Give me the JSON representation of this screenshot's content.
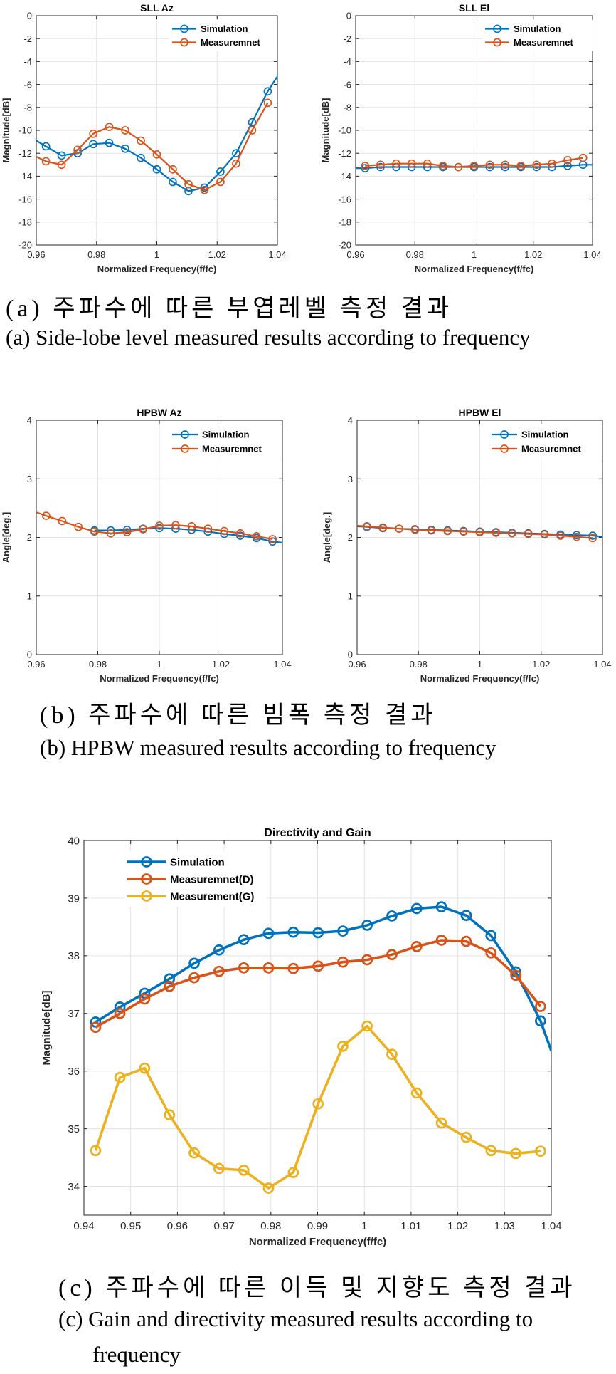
{
  "colors": {
    "simulation": "#0072BD",
    "measurement": "#D95319",
    "gain": "#EDB120"
  },
  "captions": {
    "a_ko": "(a) 주파수에 따른 부엽레벨 측정 결과",
    "a_en": "(a) Side-lobe level measured results according to frequency",
    "b_ko": "(b) 주파수에 따른 빔폭 측정 결과",
    "b_en": "(b) HPBW measured results according to frequency",
    "c_ko": "(c) 주파수에 따른 이득 및 지향도 측정 결과",
    "c_en1": "(c) Gain and directivity measured results according to",
    "c_en2": "frequency"
  },
  "chart_data": [
    {
      "id": "sll-az",
      "type": "line",
      "title": "SLL Az",
      "xlabel": "Normalized Frequency(f/fc)",
      "ylabel": "Magnitude[dB]",
      "xlim": [
        0.96,
        1.04
      ],
      "ylim": [
        -20,
        0
      ],
      "xticks": [
        0.96,
        0.98,
        1,
        1.02,
        1.04
      ],
      "xtick_labels": [
        "0.96",
        "0.98",
        "1",
        "1.02",
        "1.04"
      ],
      "yticks": [
        0,
        -2,
        -4,
        -6,
        -8,
        -10,
        -12,
        -14,
        -16,
        -18,
        -20
      ],
      "ytick_labels": [
        "0",
        "-2",
        "-4",
        "-6",
        "-8",
        "-10",
        "-12",
        "-14",
        "-16",
        "-18",
        "-20"
      ],
      "legend": [
        "Simulation",
        "Measuremnet"
      ],
      "series": [
        {
          "name": "Simulation",
          "color": "simulation",
          "x": [
            0.96,
            0.9632,
            0.9684,
            0.9737,
            0.9789,
            0.9842,
            0.9895,
            0.9947,
            1.0,
            1.0053,
            1.0105,
            1.0158,
            1.0211,
            1.0263,
            1.0316,
            1.0368,
            1.04
          ],
          "y": [
            -10.9,
            -11.4,
            -12.2,
            -12.0,
            -11.2,
            -11.1,
            -11.6,
            -12.4,
            -13.4,
            -14.5,
            -15.3,
            -15.0,
            -13.6,
            -12.0,
            -9.3,
            -6.6,
            -5.3
          ],
          "markers": [
            1,
            2,
            3,
            4,
            5,
            6,
            7,
            8,
            9,
            10,
            11,
            12,
            13,
            14,
            15
          ]
        },
        {
          "name": "Measuremnet",
          "color": "measurement",
          "x": [
            0.96,
            0.9632,
            0.9684,
            0.9737,
            0.9789,
            0.9842,
            0.9895,
            0.9947,
            1.0,
            1.0053,
            1.0105,
            1.0158,
            1.0211,
            1.0263,
            1.0316,
            1.0368
          ],
          "y": [
            -12.3,
            -12.7,
            -13.0,
            -11.7,
            -10.3,
            -9.7,
            -10.0,
            -10.9,
            -12.1,
            -13.4,
            -14.7,
            -15.2,
            -14.5,
            -12.9,
            -10.0,
            -7.6
          ],
          "markers": [
            1,
            2,
            3,
            4,
            5,
            6,
            7,
            8,
            9,
            10,
            11,
            12,
            13,
            14,
            15
          ]
        }
      ]
    },
    {
      "id": "sll-el",
      "type": "line",
      "title": "SLL El",
      "xlabel": "Normalized Frequency(f/fc)",
      "ylabel": "Magnitude[dB]",
      "xlim": [
        0.96,
        1.04
      ],
      "ylim": [
        -20,
        0
      ],
      "xticks": [
        0.96,
        0.98,
        1,
        1.02,
        1.04
      ],
      "xtick_labels": [
        "0.96",
        "0.98",
        "1",
        "1.02",
        "1.04"
      ],
      "yticks": [
        0,
        -2,
        -4,
        -6,
        -8,
        -10,
        -12,
        -14,
        -16,
        -18,
        -20
      ],
      "ytick_labels": [
        "0",
        "-2",
        "-4",
        "-6",
        "-8",
        "-10",
        "-12",
        "-14",
        "-16",
        "-18",
        "-20"
      ],
      "legend": [
        "Simulation",
        "Measuremnet"
      ],
      "series": [
        {
          "name": "Simulation",
          "color": "simulation",
          "x": [
            0.96,
            0.9632,
            0.9684,
            0.9737,
            0.9789,
            0.9842,
            0.9895,
            0.9947,
            1.0,
            1.0053,
            1.0105,
            1.0158,
            1.0211,
            1.0263,
            1.0316,
            1.0368,
            1.04
          ],
          "y": [
            -13.3,
            -13.3,
            -13.2,
            -13.2,
            -13.2,
            -13.2,
            -13.2,
            -13.2,
            -13.2,
            -13.2,
            -13.2,
            -13.2,
            -13.2,
            -13.2,
            -13.1,
            -13.0,
            -13.0
          ],
          "markers": [
            1,
            2,
            3,
            4,
            5,
            6,
            7,
            8,
            9,
            10,
            11,
            12,
            13,
            14,
            15
          ]
        },
        {
          "name": "Measuremnet",
          "color": "measurement",
          "x": [
            0.9632,
            0.9684,
            0.9737,
            0.9789,
            0.9842,
            0.9895,
            0.9947,
            1.0,
            1.0053,
            1.0105,
            1.0158,
            1.0211,
            1.0263,
            1.0316,
            1.0368
          ],
          "y": [
            -13.1,
            -13.0,
            -12.9,
            -12.9,
            -12.9,
            -13.1,
            -13.2,
            -13.1,
            -13.0,
            -13.0,
            -13.1,
            -13.0,
            -12.9,
            -12.6,
            -12.4
          ],
          "markers": [
            0,
            1,
            2,
            3,
            4,
            5,
            6,
            7,
            8,
            9,
            10,
            11,
            12,
            13,
            14
          ]
        }
      ]
    },
    {
      "id": "hpbw-az",
      "type": "line",
      "title": "HPBW Az",
      "xlabel": "Normalized Frequency(f/fc)",
      "ylabel": "Angle[deg.]",
      "xlim": [
        0.96,
        1.04
      ],
      "ylim": [
        0,
        4
      ],
      "xticks": [
        0.96,
        0.98,
        1,
        1.02,
        1.04
      ],
      "xtick_labels": [
        "0.96",
        "0.98",
        "1",
        "1.02",
        "1.04"
      ],
      "yticks": [
        0,
        1,
        2,
        3,
        4
      ],
      "ytick_labels": [
        "0",
        "1",
        "2",
        "3",
        "4"
      ],
      "legend": [
        "Simulation",
        "Measuremnet"
      ],
      "series": [
        {
          "name": "Simulation",
          "color": "simulation",
          "x": [
            0.9789,
            0.9842,
            0.9895,
            0.9947,
            1.0,
            1.0053,
            1.0105,
            1.0158,
            1.0211,
            1.0263,
            1.0316,
            1.0368,
            1.04
          ],
          "y": [
            2.12,
            2.12,
            2.13,
            2.15,
            2.16,
            2.15,
            2.13,
            2.1,
            2.06,
            2.03,
            1.99,
            1.93,
            1.91
          ],
          "markers": [
            0,
            1,
            2,
            3,
            4,
            5,
            6,
            7,
            8,
            9,
            10,
            11
          ]
        },
        {
          "name": "Measuremnet",
          "color": "measurement",
          "x": [
            0.96,
            0.9632,
            0.9684,
            0.9737,
            0.9789,
            0.9842,
            0.9895,
            0.9947,
            1.0,
            1.0053,
            1.0105,
            1.0158,
            1.0211,
            1.0263,
            1.0316,
            1.0368
          ],
          "y": [
            2.43,
            2.37,
            2.28,
            2.18,
            2.1,
            2.07,
            2.09,
            2.14,
            2.2,
            2.21,
            2.19,
            2.15,
            2.11,
            2.07,
            2.02,
            1.97
          ],
          "markers": [
            1,
            2,
            3,
            4,
            5,
            6,
            7,
            8,
            9,
            10,
            11,
            12,
            13,
            14,
            15
          ]
        }
      ]
    },
    {
      "id": "hpbw-el",
      "type": "line",
      "title": "HPBW El",
      "xlabel": "Normalized Frequency(f/fc)",
      "ylabel": "Angle[deg.]",
      "xlim": [
        0.96,
        1.04
      ],
      "ylim": [
        0,
        4
      ],
      "xticks": [
        0.96,
        0.98,
        1,
        1.02,
        1.04
      ],
      "xtick_labels": [
        "0.96",
        "0.98",
        "1",
        "1.02",
        "1.04"
      ],
      "yticks": [
        0,
        1,
        2,
        3,
        4
      ],
      "ytick_labels": [
        "0",
        "1",
        "2",
        "3",
        "4"
      ],
      "legend": [
        "Simulation",
        "Measuremnet"
      ],
      "series": [
        {
          "name": "Simulation",
          "color": "simulation",
          "x": [
            0.96,
            0.9632,
            0.9684,
            0.9737,
            0.9789,
            0.9842,
            0.9895,
            0.9947,
            1.0,
            1.0053,
            1.0105,
            1.0158,
            1.0211,
            1.0263,
            1.0316,
            1.0368,
            1.04
          ],
          "y": [
            2.19,
            2.18,
            2.16,
            2.15,
            2.14,
            2.13,
            2.12,
            2.11,
            2.1,
            2.09,
            2.08,
            2.07,
            2.06,
            2.05,
            2.04,
            2.03,
            2.01
          ],
          "markers": [
            1,
            2,
            3,
            4,
            5,
            6,
            7,
            8,
            9,
            10,
            11,
            12,
            13,
            14,
            15
          ]
        },
        {
          "name": "Measuremnet",
          "color": "measurement",
          "x": [
            0.96,
            0.9632,
            0.9684,
            0.9737,
            0.9789,
            0.9842,
            0.9895,
            0.9947,
            1.0,
            1.0053,
            1.0105,
            1.0158,
            1.0211,
            1.0263,
            1.0316,
            1.0368
          ],
          "y": [
            2.2,
            2.19,
            2.17,
            2.15,
            2.13,
            2.12,
            2.11,
            2.1,
            2.09,
            2.08,
            2.07,
            2.06,
            2.05,
            2.03,
            2.01,
            1.99
          ],
          "markers": [
            1,
            2,
            3,
            4,
            5,
            6,
            7,
            8,
            9,
            10,
            11,
            12,
            13,
            14,
            15
          ]
        }
      ]
    },
    {
      "id": "directivity-gain",
      "type": "line",
      "title": "Directivity and Gain",
      "xlabel": "Normalized Frequency(f/fc)",
      "ylabel": "Magnitude[dB]",
      "xlim": [
        0.94,
        1.04
      ],
      "ylim": [
        33.5,
        40
      ],
      "xticks": [
        0.94,
        0.95,
        0.96,
        0.97,
        0.98,
        0.99,
        1,
        1.01,
        1.02,
        1.03,
        1.04
      ],
      "xtick_labels": [
        "0.94",
        "0.95",
        "0.96",
        "0.97",
        "0.98",
        "0.99",
        "1",
        "1.01",
        "1.02",
        "1.03",
        "1.04"
      ],
      "yticks": [
        34,
        35,
        36,
        37,
        38,
        39,
        40
      ],
      "ytick_labels": [
        "34",
        "35",
        "36",
        "37",
        "38",
        "39",
        "40"
      ],
      "legend": [
        "Simulation",
        "Measuremnet(D)",
        "Measurement(G)"
      ],
      "series": [
        {
          "name": "Simulation",
          "color": "simulation",
          "x": [
            0.9425,
            0.9477,
            0.953,
            0.9583,
            0.9636,
            0.9689,
            0.9742,
            0.9795,
            0.9848,
            0.9901,
            0.9954,
            1.0006,
            1.0059,
            1.0112,
            1.0165,
            1.0218,
            1.0271,
            1.0324,
            1.0377,
            1.04
          ],
          "y": [
            36.85,
            37.11,
            37.35,
            37.6,
            37.87,
            38.1,
            38.28,
            38.39,
            38.41,
            38.4,
            38.43,
            38.53,
            38.69,
            38.82,
            38.85,
            38.7,
            38.35,
            37.72,
            36.87,
            36.35
          ],
          "markers": [
            0,
            1,
            2,
            3,
            4,
            5,
            6,
            7,
            8,
            9,
            10,
            11,
            12,
            13,
            14,
            15,
            16,
            17,
            18
          ]
        },
        {
          "name": "Measuremnet(D)",
          "color": "measurement",
          "x": [
            0.9425,
            0.9477,
            0.953,
            0.9583,
            0.9636,
            0.9689,
            0.9742,
            0.9795,
            0.9848,
            0.9901,
            0.9954,
            1.0006,
            1.0059,
            1.0112,
            1.0165,
            1.0218,
            1.0271,
            1.0324,
            1.0377
          ],
          "y": [
            36.76,
            37.0,
            37.25,
            37.47,
            37.62,
            37.73,
            37.79,
            37.79,
            37.78,
            37.82,
            37.89,
            37.93,
            38.02,
            38.16,
            38.27,
            38.25,
            38.05,
            37.66,
            37.12
          ],
          "markers": [
            0,
            1,
            2,
            3,
            4,
            5,
            6,
            7,
            8,
            9,
            10,
            11,
            12,
            13,
            14,
            15,
            16,
            17,
            18
          ]
        },
        {
          "name": "Measurement(G)",
          "color": "gain",
          "x": [
            0.9425,
            0.9477,
            0.953,
            0.9583,
            0.9636,
            0.9689,
            0.9742,
            0.9795,
            0.9848,
            0.9901,
            0.9954,
            1.0006,
            1.0059,
            1.0112,
            1.0165,
            1.0218,
            1.0271,
            1.0324,
            1.0377
          ],
          "y": [
            34.62,
            35.89,
            36.05,
            35.24,
            34.58,
            34.31,
            34.28,
            33.97,
            34.24,
            35.43,
            36.43,
            36.78,
            36.29,
            35.62,
            35.1,
            34.85,
            34.62,
            34.57,
            34.61
          ],
          "markers": [
            0,
            1,
            2,
            3,
            4,
            5,
            6,
            7,
            8,
            9,
            10,
            11,
            12,
            13,
            14,
            15,
            16,
            17,
            18
          ]
        }
      ]
    }
  ]
}
